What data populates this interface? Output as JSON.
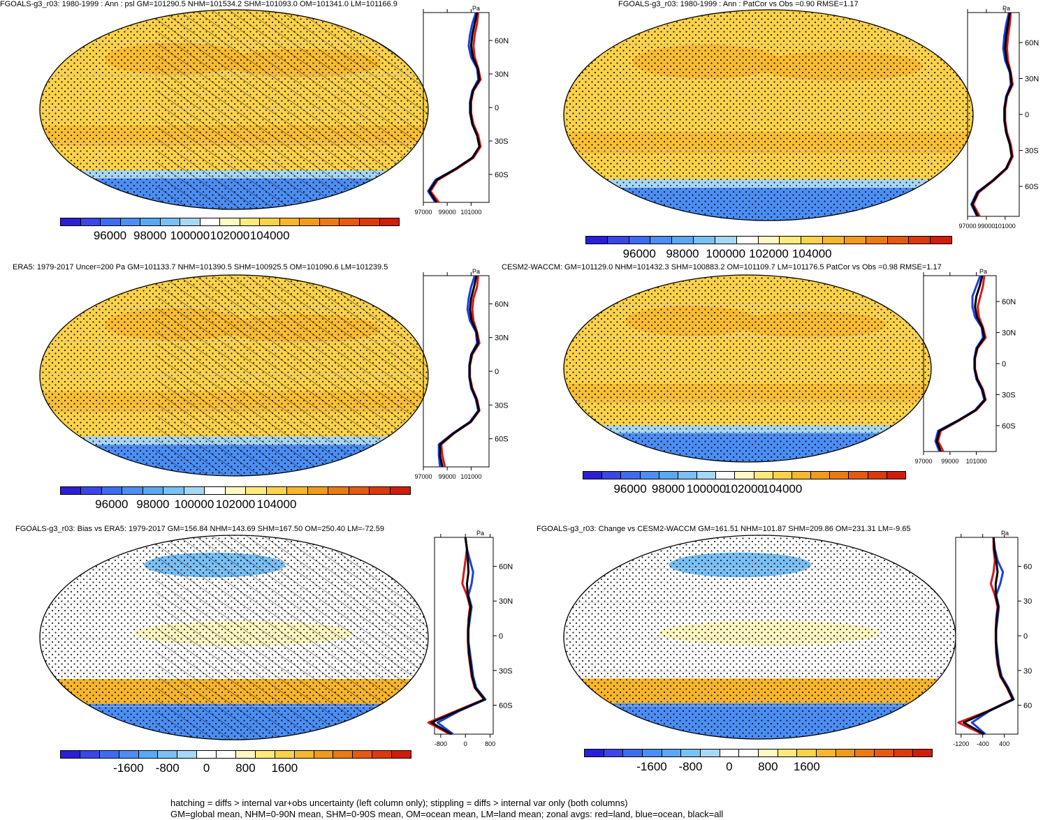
{
  "colors": {
    "abs_scale": [
      "#2a1fd6",
      "#3b46e8",
      "#3e6cf0",
      "#4c8ef4",
      "#5aa8f5",
      "#79c0f5",
      "#a6d8f6",
      "#ffffff",
      "#fff8c2",
      "#ffe97a",
      "#fcd24a",
      "#f8b62c",
      "#f19a1c",
      "#ea7a14",
      "#e35a10",
      "#da3a0c",
      "#d01c0a"
    ],
    "diff_scale": [
      "#2a1fd6",
      "#3b46e8",
      "#3e6cf0",
      "#4c8ef4",
      "#5aa8f5",
      "#79c0f5",
      "#a6d8f6",
      "#ffffff",
      "#ffffff",
      "#fff8c2",
      "#ffe97a",
      "#fcd24a",
      "#f8b62c",
      "#f19a1c",
      "#ea7a14",
      "#e35a10",
      "#da3a0c",
      "#d01c0a"
    ],
    "land": "#d8191e",
    "ocean": "#1a3fe0",
    "all": "#000000"
  },
  "panels": [
    {
      "id": "p1",
      "title": "FGOALS-g3_r03: 1980-1999 : Ann : psl GM=101290.5 NHM=101534.2 SHM=101093.0 OM=101341.0 LM=101166.9",
      "unit": "Pa",
      "cbar_labels": [
        "96000",
        "98000",
        "100000",
        "102000",
        "104000"
      ],
      "zonal_ticks": [
        "97000",
        "99000",
        "101000"
      ],
      "lat_labels": [
        "60N",
        "30N",
        "0",
        "30S",
        "60S"
      ]
    },
    {
      "id": "p2",
      "title": "FGOALS-g3_r03: 1980-1999 : Ann : PatCor vs Obs =0.90 RMSE=1.17",
      "unit": "Pa",
      "cbar_labels": [
        "96000",
        "98000",
        "100000",
        "102000",
        "104000"
      ],
      "zonal_ticks": [
        "97000",
        "99000",
        "101000"
      ],
      "lat_labels": [
        "60N",
        "30N",
        "0",
        "30S",
        "60S"
      ]
    },
    {
      "id": "p3",
      "title": "ERA5: 1979-2017 Uncer=200 Pa GM=101133.7 NHM=101390.5 SHM=100925.5 OM=101090.6 LM=101239.5",
      "unit": "Pa",
      "cbar_labels": [
        "96000",
        "98000",
        "100000",
        "102000",
        "104000"
      ],
      "zonal_ticks": [
        "97000",
        "99000",
        "101000"
      ],
      "lat_labels": [
        "60N",
        "30N",
        "0",
        "30S",
        "60S"
      ]
    },
    {
      "id": "p4",
      "title": "CESM2-WACCM: GM=101129.0 NHM=101432.3 SHM=100883.2 OM=101109.7 LM=101176.5 PatCor vs Obs =0.98 RMSE=1.17",
      "unit": "Pa",
      "cbar_labels": [
        "96000",
        "98000",
        "100000",
        "102000",
        "104000"
      ],
      "zonal_ticks": [
        "97000",
        "99000",
        "101000"
      ],
      "lat_labels": [
        "60N",
        "30N",
        "0",
        "30S",
        "60S"
      ]
    },
    {
      "id": "p5",
      "title": "FGOALS-g3_r03: Bias vs ERA5: 1979-2017 GM=156.84 NHM=143.69 SHM=167.50 OM=250.40 LM=-72.59",
      "unit": "Pa",
      "cbar_labels": [
        "-1600",
        "-800",
        "0",
        "800",
        "1600"
      ],
      "zonal_ticks": [
        "-800",
        "0",
        "800"
      ],
      "lat_labels": [
        "60N",
        "30N",
        "0",
        "30S",
        "60S"
      ]
    },
    {
      "id": "p6",
      "title": "FGOALS-g3_r03: Change vs CESM2-WACCM GM=161.51 NHM=101.87 SHM=209.86 OM=231.31 LM=-9.65",
      "unit": "Pa",
      "cbar_labels": [
        "-1600",
        "-800",
        "0",
        "800",
        "1600"
      ],
      "zonal_ticks": [
        "-1200",
        "-400",
        "400"
      ],
      "lat_labels": [
        "60",
        "30",
        "0",
        "30",
        "60"
      ]
    }
  ],
  "footer": {
    "line1": "hatching = diffs > internal var+obs uncertainty (left column only); stippling = diffs > internal var only (both columns)",
    "line2": "GM=global mean, NHM=0-90N mean, SHM=0-90S mean, OM=ocean mean, LM=land mean; zonal avgs: red=land, blue=ocean, black=all"
  },
  "chart_data": [
    {
      "type": "heatmap",
      "title": "FGOALS-g3_r03: 1980-1999 : Ann : psl GM=101290.5 NHM=101534.2 SHM=101093.0 OM=101341.0 LM=101166.9",
      "colorbar_ticks": [
        96000,
        98000,
        100000,
        102000,
        104000
      ],
      "zonal_mean": {
        "lat": [
          -85,
          -75,
          -65,
          -55,
          -45,
          -35,
          -25,
          -15,
          -5,
          5,
          15,
          25,
          35,
          45,
          55,
          65,
          75,
          85
        ],
        "series": [
          {
            "name": "land",
            "values": [
              98300,
              97600,
              98200,
              99800,
              101200,
              101800,
              101600,
              101200,
              101000,
              101000,
              101200,
              101800,
              101600,
              101300,
              101200,
              101300,
              101500,
              101600
            ]
          },
          {
            "name": "ocean",
            "values": [
              98000,
              97400,
              98000,
              99700,
              101100,
              101700,
              101500,
              101100,
              100900,
              100900,
              101100,
              101600,
              101500,
              101000,
              100800,
              100900,
              101100,
              101400
            ]
          },
          {
            "name": "all",
            "values": [
              98100,
              97500,
              98100,
              99700,
              101100,
              101700,
              101500,
              101100,
              100950,
              100950,
              101150,
              101700,
              101550,
              101150,
              101000,
              101100,
              101300,
              101500
            ]
          }
        ]
      }
    },
    {
      "type": "heatmap",
      "title": "FGOALS-g3_r03: 1980-1999 : Ann : PatCor vs Obs =0.90 RMSE=1.17",
      "colorbar_ticks": [
        96000,
        98000,
        100000,
        102000,
        104000
      ],
      "zonal_mean": {
        "lat": [
          -85,
          -75,
          -65,
          -55,
          -45,
          -35,
          -25,
          -15,
          -5,
          5,
          15,
          25,
          35,
          45,
          55,
          65,
          75,
          85
        ],
        "series": [
          {
            "name": "land",
            "values": [
              98300,
              97600,
              98200,
              99800,
              101200,
              101800,
              101600,
              101200,
              101000,
              101000,
              101200,
              101800,
              101600,
              101300,
              101200,
              101300,
              101500,
              101600
            ]
          },
          {
            "name": "ocean",
            "values": [
              98000,
              97400,
              98000,
              99700,
              101100,
              101700,
              101500,
              101100,
              100900,
              100900,
              101100,
              101600,
              101500,
              101000,
              100800,
              100900,
              101100,
              101400
            ]
          },
          {
            "name": "all",
            "values": [
              98100,
              97500,
              98100,
              99700,
              101100,
              101700,
              101500,
              101100,
              100950,
              100950,
              101150,
              101700,
              101550,
              101150,
              101000,
              101100,
              101300,
              101500
            ]
          }
        ]
      }
    },
    {
      "type": "heatmap",
      "title": "ERA5: 1979-2017 Uncer=200 Pa GM=101133.7 NHM=101390.5 SHM=100925.5 OM=101090.6 LM=101239.5",
      "colorbar_ticks": [
        96000,
        98000,
        100000,
        102000,
        104000
      ],
      "zonal_mean": {
        "lat": [
          -85,
          -75,
          -65,
          -55,
          -45,
          -35,
          -25,
          -15,
          -5,
          5,
          15,
          25,
          35,
          45,
          55,
          65,
          75,
          85
        ],
        "series": [
          {
            "name": "land",
            "values": [
              98800,
              98600,
              98500,
              99600,
              101000,
              101700,
              101500,
              101100,
              100900,
              100900,
              101100,
              101700,
              101500,
              101200,
              101100,
              101200,
              101500,
              101600
            ]
          },
          {
            "name": "ocean",
            "values": [
              98400,
              98300,
              98300,
              99500,
              100900,
              101600,
              101400,
              101000,
              100850,
              100850,
              101000,
              101500,
              101400,
              100900,
              100700,
              100800,
              101000,
              101300
            ]
          },
          {
            "name": "all",
            "values": [
              98600,
              98400,
              98400,
              99550,
              100950,
              101650,
              101450,
              101050,
              100870,
              100870,
              101050,
              101600,
              101450,
              101050,
              100900,
              101000,
              101250,
              101450
            ]
          }
        ]
      }
    },
    {
      "type": "heatmap",
      "title": "CESM2-WACCM: GM=101129.0 NHM=101432.3 SHM=100883.2 OM=101109.7 LM=101176.5 PatCor vs Obs =0.98 RMSE=1.17",
      "colorbar_ticks": [
        96000,
        98000,
        100000,
        102000,
        104000
      ],
      "zonal_mean": {
        "lat": [
          -85,
          -75,
          -65,
          -55,
          -45,
          -35,
          -25,
          -15,
          -5,
          5,
          15,
          25,
          35,
          45,
          55,
          65,
          75,
          85
        ],
        "series": [
          {
            "name": "land",
            "values": [
              98500,
              98100,
              98300,
              99700,
              101000,
              101700,
              101500,
              101100,
              100900,
              100900,
              101100,
              101700,
              101500,
              101200,
              101100,
              101300,
              101500,
              101600
            ]
          },
          {
            "name": "ocean",
            "values": [
              98200,
              97900,
              98100,
              99600,
              100900,
              101600,
              101400,
              101000,
              100850,
              100850,
              101000,
              101500,
              101400,
              100900,
              100700,
              100700,
              101000,
              101300
            ]
          },
          {
            "name": "all",
            "values": [
              98300,
              98000,
              98200,
              99650,
              100950,
              101650,
              101450,
              101050,
              100870,
              100870,
              101050,
              101600,
              101450,
              101050,
              100900,
              101000,
              101250,
              101450
            ]
          }
        ]
      }
    },
    {
      "type": "heatmap",
      "title": "FGOALS-g3_r03: Bias vs ERA5: 1979-2017 GM=156.84 NHM=143.69 SHM=167.50 OM=250.40 LM=-72.59",
      "colorbar_ticks": [
        -1600,
        -800,
        0,
        800,
        1600
      ],
      "zonal_mean": {
        "lat": [
          -85,
          -75,
          -65,
          -55,
          -45,
          -35,
          -25,
          -15,
          -5,
          5,
          15,
          25,
          35,
          45,
          55,
          65,
          75,
          85
        ],
        "series": [
          {
            "name": "land",
            "values": [
              -500,
              -1200,
              -300,
              600,
              300,
              200,
              150,
              100,
              80,
              80,
              100,
              150,
              50,
              -100,
              -50,
              0,
              50,
              0
            ]
          },
          {
            "name": "ocean",
            "values": [
              -400,
              -900,
              -200,
              650,
              350,
              250,
              200,
              150,
              100,
              100,
              150,
              200,
              100,
              200,
              250,
              150,
              50,
              0
            ]
          },
          {
            "name": "all",
            "values": [
              -450,
              -1100,
              -250,
              620,
              320,
              220,
              170,
              120,
              90,
              90,
              120,
              170,
              80,
              50,
              100,
              80,
              50,
              0
            ]
          }
        ]
      }
    },
    {
      "type": "heatmap",
      "title": "FGOALS-g3_r03: Change vs CESM2-WACCM GM=161.51 NHM=101.87 SHM=209.86 OM=231.31 LM=-9.65",
      "colorbar_ticks": [
        -1600,
        -800,
        0,
        800,
        1600
      ],
      "zonal_mean": {
        "lat": [
          -85,
          -75,
          -65,
          -55,
          -45,
          -35,
          -25,
          -15,
          -5,
          5,
          15,
          25,
          35,
          45,
          55,
          65,
          75,
          85
        ],
        "series": [
          {
            "name": "land",
            "values": [
              -400,
              -1300,
              -200,
              700,
              500,
              250,
              150,
              100,
              80,
              80,
              100,
              150,
              50,
              -100,
              0,
              50,
              0,
              0
            ]
          },
          {
            "name": "ocean",
            "values": [
              -300,
              -800,
              -150,
              750,
              550,
              300,
              200,
              150,
              100,
              100,
              150,
              200,
              100,
              250,
              350,
              150,
              50,
              0
            ]
          },
          {
            "name": "all",
            "values": [
              -350,
              -1100,
              -180,
              720,
              520,
              270,
              170,
              120,
              90,
              90,
              120,
              170,
              80,
              80,
              150,
              100,
              30,
              0
            ]
          }
        ]
      }
    }
  ]
}
